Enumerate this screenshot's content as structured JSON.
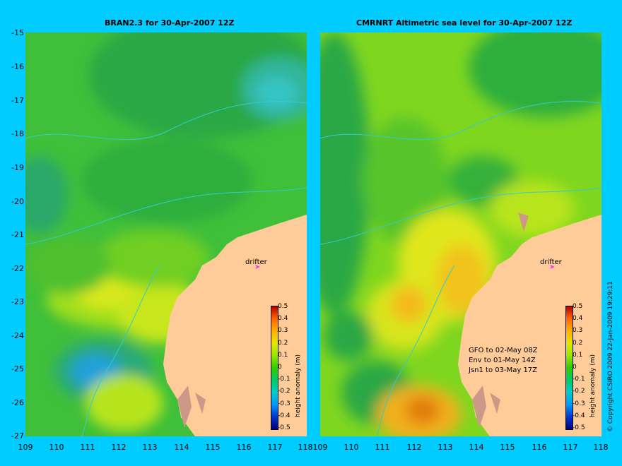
{
  "left_panel": {
    "title": "BRAN2.3 for 30-Apr-2007 12Z"
  },
  "right_panel": {
    "title": "CMRNRT Altimetric sea level  for 30-Apr-2007 12Z",
    "legend": [
      "GFO to 02-May 08Z",
      "Env to 01-May 14Z",
      "Jsn1 to 03-May 17Z"
    ]
  },
  "y_axis_labels": [
    "-15",
    "-16",
    "-17",
    "-18",
    "-19",
    "-20",
    "-21",
    "-22",
    "-23",
    "-24",
    "-25",
    "-26",
    "-27"
  ],
  "x_axis_labels": [
    "109",
    "110",
    "111",
    "112",
    "113",
    "114",
    "115",
    "116",
    "117",
    "118"
  ],
  "drifter_label": "drifter",
  "colorbar": {
    "title": "height anomaly (m)",
    "ticks": [
      "0.5",
      "0.4",
      "0.3",
      "0.2",
      "0.1",
      "0",
      "-0.1",
      "-0.2",
      "-0.3",
      "-0.4",
      "-0.5"
    ],
    "colors": [
      "#000080",
      "#0033cc",
      "#0099ff",
      "#00cccc",
      "#00cc66",
      "#33cc00",
      "#99e600",
      "#e6e600",
      "#ffb000",
      "#ff6600",
      "#b30000"
    ]
  },
  "copyright": "© Copyright CSIRO 2009   22-Jan-2009 19:29:11",
  "colors": {
    "background": "#00ccff",
    "land": "#ffcc99",
    "ocean_base": "#3fbf3a"
  }
}
